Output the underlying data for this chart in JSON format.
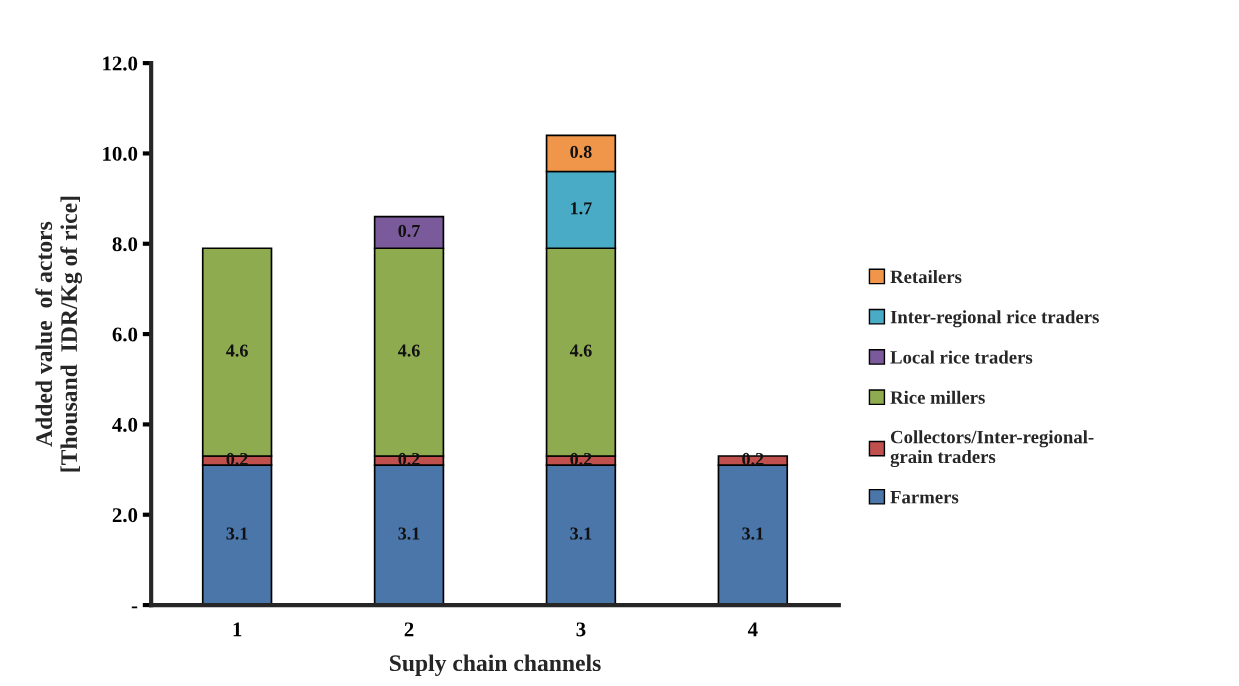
{
  "chart_data": {
    "type": "bar",
    "stacked": true,
    "xlabel": "Suply chain channels",
    "ylabel": "Added value  of actors\n[Thousand  IDR/Kg of rice]",
    "categories": [
      "1",
      "2",
      "3",
      "4"
    ],
    "series": [
      {
        "name": "Farmers",
        "color": "#4a76aa",
        "values": [
          3.1,
          3.1,
          3.1,
          3.1
        ]
      },
      {
        "name": "Collectors/Inter-regional-\ngrain traders",
        "color": "#c0504d",
        "values": [
          0.2,
          0.2,
          0.2,
          0.2
        ]
      },
      {
        "name": "Rice millers",
        "color": "#8fab4f",
        "values": [
          4.6,
          4.6,
          4.6,
          null
        ]
      },
      {
        "name": "Local rice traders",
        "color": "#7a5a9a",
        "values": [
          null,
          0.7,
          null,
          null
        ]
      },
      {
        "name": "Inter-regional rice traders",
        "color": "#4aabc6",
        "values": [
          null,
          null,
          1.7,
          null
        ]
      },
      {
        "name": "Retailers",
        "color": "#f0964a",
        "values": [
          null,
          null,
          0.8,
          null
        ]
      }
    ],
    "ylim": [
      0,
      12
    ],
    "yticks": [
      {
        "value": 0,
        "label": "-"
      },
      {
        "value": 2,
        "label": "2.0"
      },
      {
        "value": 4,
        "label": "4.0"
      },
      {
        "value": 6,
        "label": "6.0"
      },
      {
        "value": 8,
        "label": "8.0"
      },
      {
        "value": 10,
        "label": "10.0"
      },
      {
        "value": 12,
        "label": "12.0"
      }
    ],
    "data_labels": true,
    "legend": "right",
    "grid": false
  }
}
